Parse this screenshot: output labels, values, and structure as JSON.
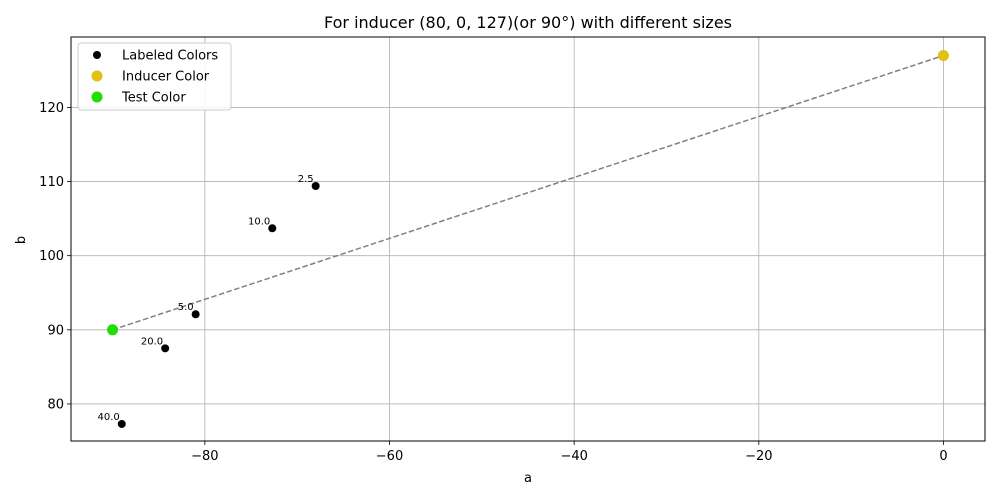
{
  "chart_data": {
    "type": "scatter",
    "title": "For inducer (80, 0, 127)(or 90°) with different sizes",
    "xlabel": "a",
    "ylabel": "b",
    "xlim": [
      -94.5,
      4.5
    ],
    "ylim": [
      75,
      129.5
    ],
    "xticks": [
      -80,
      -60,
      -40,
      -20,
      0
    ],
    "xtick_labels": [
      "−80",
      "−60",
      "−40",
      "−20",
      "0"
    ],
    "yticks": [
      80,
      90,
      100,
      110,
      120
    ],
    "ytick_labels": [
      "80",
      "90",
      "100",
      "110",
      "120"
    ],
    "grid": true,
    "legend_position": "top-left",
    "series": [
      {
        "name": "Labeled Colors",
        "color": "#000000",
        "points": [
          {
            "x": -68.0,
            "y": 109.4,
            "label": "2.5"
          },
          {
            "x": -81.0,
            "y": 92.1,
            "label": "5.0"
          },
          {
            "x": -72.7,
            "y": 103.7,
            "label": "10.0"
          },
          {
            "x": -84.3,
            "y": 87.5,
            "label": "20.0"
          },
          {
            "x": -89.0,
            "y": 77.3,
            "label": "40.0"
          }
        ]
      },
      {
        "name": "Inducer Color",
        "color": "#e0c010",
        "points": [
          {
            "x": 0,
            "y": 127
          }
        ]
      },
      {
        "name": "Test Color",
        "color": "#22dd00",
        "points": [
          {
            "x": -90,
            "y": 90
          }
        ]
      }
    ],
    "reference_line": {
      "from": {
        "x": -90,
        "y": 90
      },
      "to": {
        "x": 0,
        "y": 127
      },
      "color": "#808080",
      "style": "dashed"
    }
  }
}
